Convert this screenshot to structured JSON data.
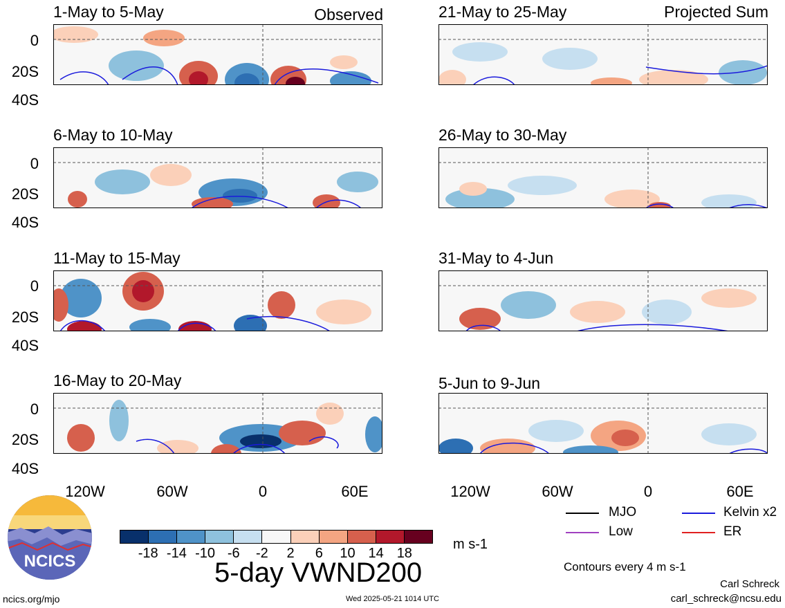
{
  "columns": {
    "left": "Observed",
    "right": "Projected Sum"
  },
  "panels": [
    {
      "title": "1-May to 5-May"
    },
    {
      "title": "6-May to 10-May"
    },
    {
      "title": "11-May to 15-May"
    },
    {
      "title": "16-May to 20-May"
    },
    {
      "title": "21-May to 25-May"
    },
    {
      "title": "26-May to 30-May"
    },
    {
      "title": "31-May to 4-Jun"
    },
    {
      "title": "5-Jun to 9-Jun"
    }
  ],
  "chart_data": {
    "type": "heatmap",
    "title": "5-day VWND200",
    "x_ticks": [
      "120W",
      "60W",
      "0",
      "60E"
    ],
    "y_ticks": [
      "0",
      "20S",
      "40S"
    ],
    "units": "m s-1",
    "colorbar": {
      "labels": [
        "-18",
        "-14",
        "-10",
        "-6",
        "-2",
        "2",
        "6",
        "10",
        "14",
        "18"
      ],
      "colors": [
        "#08306b",
        "#2d6fb3",
        "#4f93c8",
        "#8ec1dd",
        "#c6dff0",
        "#f7f7f7",
        "#fbd0b9",
        "#f4a582",
        "#d6604d",
        "#b2182b",
        "#67001f"
      ]
    },
    "contour_note": "Contours every 4 m s-1",
    "legend": [
      {
        "label": "MJO",
        "color": "#000000"
      },
      {
        "label": "Kelvin x2",
        "color": "#1a1adc"
      },
      {
        "label": "Low",
        "color": "#a040c0"
      },
      {
        "label": "ER",
        "color": "#e02020"
      }
    ]
  },
  "logo": {
    "text": "NCICS"
  },
  "footer": {
    "url": "ncics.org/mjo",
    "timestamp": "Wed 2025-05-21 1014 UTC",
    "author": "Carl Schreck",
    "email": "carl_schreck@ncsu.edu"
  }
}
